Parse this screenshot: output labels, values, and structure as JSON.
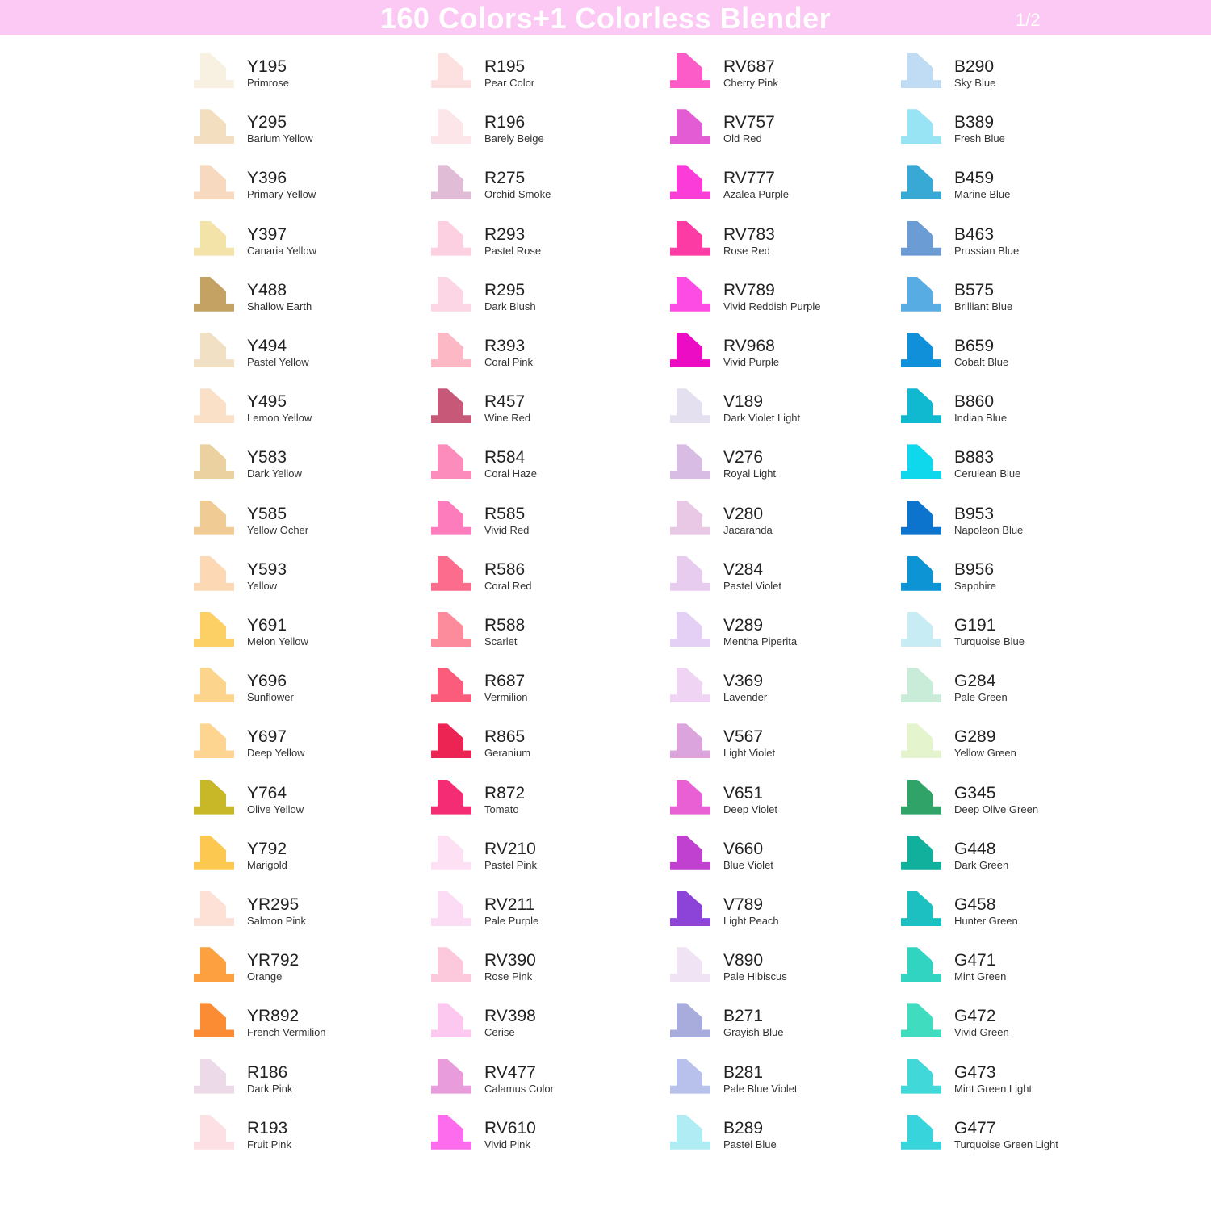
{
  "header": {
    "title": "160 Colors+1 Colorless Blender",
    "page": "1/2",
    "background": "#fcc8f4"
  },
  "columns": [
    {
      "items": [
        {
          "code": "Y195",
          "name": "Primrose",
          "color": "#f8f0e0"
        },
        {
          "code": "Y295",
          "name": "Barium Yellow",
          "color": "#f3dfc0"
        },
        {
          "code": "Y396",
          "name": "Primary Yellow",
          "color": "#f6d9bf"
        },
        {
          "code": "Y397",
          "name": "Canaria Yellow",
          "color": "#f3e3a8"
        },
        {
          "code": "Y488",
          "name": "Shallow Earth",
          "color": "#c4a264"
        },
        {
          "code": "Y494",
          "name": "Pastel Yellow",
          "color": "#f1e0c4"
        },
        {
          "code": "Y495",
          "name": "Lemon Yellow",
          "color": "#fbe0c8"
        },
        {
          "code": "Y583",
          "name": "Dark Yellow",
          "color": "#ecd1a0"
        },
        {
          "code": "Y585",
          "name": "Yellow Ocher",
          "color": "#f0cc94"
        },
        {
          "code": "Y593",
          "name": "Yellow",
          "color": "#fcd8b4"
        },
        {
          "code": "Y691",
          "name": "Melon Yellow",
          "color": "#fcd064"
        },
        {
          "code": "Y696",
          "name": "Sunflower",
          "color": "#fcd48c"
        },
        {
          "code": "Y697",
          "name": "Deep Yellow",
          "color": "#fdd590"
        },
        {
          "code": "Y764",
          "name": "Olive Yellow",
          "color": "#c8b828"
        },
        {
          "code": "Y792",
          "name": "Marigold",
          "color": "#fcc850"
        },
        {
          "code": "YR295",
          "name": "Salmon Pink",
          "color": "#fde0d6"
        },
        {
          "code": "YR792",
          "name": "Orange",
          "color": "#fca040"
        },
        {
          "code": "YR892",
          "name": "French Vermilion",
          "color": "#fc8c34"
        },
        {
          "code": "R186",
          "name": "Dark Pink",
          "color": "#ecdae8"
        },
        {
          "code": "R193",
          "name": "Fruit Pink",
          "color": "#fde0e4"
        }
      ]
    },
    {
      "items": [
        {
          "code": "R195",
          "name": "Pear Color",
          "color": "#fde0e0"
        },
        {
          "code": "R196",
          "name": "Barely Beige",
          "color": "#fde6ea"
        },
        {
          "code": "R275",
          "name": "Orchid Smoke",
          "color": "#e0bcd6"
        },
        {
          "code": "R293",
          "name": "Pastel Rose",
          "color": "#fcd0e0"
        },
        {
          "code": "R295",
          "name": "Dark Blush",
          "color": "#fcd6e4"
        },
        {
          "code": "R393",
          "name": "Coral Pink",
          "color": "#fcb8c4"
        },
        {
          "code": "R457",
          "name": "Wine Red",
          "color": "#c85878"
        },
        {
          "code": "R584",
          "name": "Coral Haze",
          "color": "#fc8cbc"
        },
        {
          "code": "R585",
          "name": "Vivid Red",
          "color": "#fc7cbc"
        },
        {
          "code": "R586",
          "name": "Coral Red",
          "color": "#fc6c8c"
        },
        {
          "code": "R588",
          "name": "Scarlet",
          "color": "#fc8c9c"
        },
        {
          "code": "R687",
          "name": "Vermilion",
          "color": "#fc5c7c"
        },
        {
          "code": "R865",
          "name": "Geranium",
          "color": "#ec2454"
        },
        {
          "code": "R872",
          "name": "Tomato",
          "color": "#f42c74"
        },
        {
          "code": "RV210",
          "name": "Pastel Pink",
          "color": "#fde0f4"
        },
        {
          "code": "RV211",
          "name": "Pale Purple",
          "color": "#fcdcf4"
        },
        {
          "code": "RV390",
          "name": "Rose Pink",
          "color": "#fcc8dc"
        },
        {
          "code": "RV398",
          "name": "Cerise",
          "color": "#fcc8f0"
        },
        {
          "code": "RV477",
          "name": "Calamus Color",
          "color": "#e89cdc"
        },
        {
          "code": "RV610",
          "name": "Vivid Pink",
          "color": "#fc6cec"
        }
      ]
    },
    {
      "items": [
        {
          "code": "RV687",
          "name": "Cherry Pink",
          "color": "#fc5cc8"
        },
        {
          "code": "RV757",
          "name": "Old Red",
          "color": "#e45cd4"
        },
        {
          "code": "RV777",
          "name": "Azalea Purple",
          "color": "#fc3cd8"
        },
        {
          "code": "RV783",
          "name": "Rose Red",
          "color": "#fc3ca4"
        },
        {
          "code": "RV789",
          "name": "Vivid Reddish Purple",
          "color": "#fc4ce4"
        },
        {
          "code": "RV968",
          "name": "Vivid Purple",
          "color": "#ec0cc4"
        },
        {
          "code": "V189",
          "name": "Dark Violet Light",
          "color": "#e4e0f0"
        },
        {
          "code": "V276",
          "name": "Royal Light",
          "color": "#d8bce4"
        },
        {
          "code": "V280",
          "name": "Jacaranda",
          "color": "#e8c8e4"
        },
        {
          "code": "V284",
          "name": "Pastel Violet",
          "color": "#e8ccf0"
        },
        {
          "code": "V289",
          "name": "Mentha Piperita",
          "color": "#e4d0f4"
        },
        {
          "code": "V369",
          "name": "Lavender",
          "color": "#f0d4f4"
        },
        {
          "code": "V567",
          "name": "Light Violet",
          "color": "#dca4dc"
        },
        {
          "code": "V651",
          "name": "Deep Violet",
          "color": "#e860d4"
        },
        {
          "code": "V660",
          "name": "Blue Violet",
          "color": "#c040d0"
        },
        {
          "code": "V789",
          "name": "Light Peach",
          "color": "#8c44d8"
        },
        {
          "code": "V890",
          "name": "Pale Hibiscus",
          "color": "#f0e4f4"
        },
        {
          "code": "B271",
          "name": "Grayish Blue",
          "color": "#a8acdc"
        },
        {
          "code": "B281",
          "name": "Pale Blue Violet",
          "color": "#b8c0ec"
        },
        {
          "code": "B289",
          "name": "Pastel Blue",
          "color": "#b0ecf4"
        }
      ]
    },
    {
      "items": [
        {
          "code": "B290",
          "name": "Sky Blue",
          "color": "#c0dcf4"
        },
        {
          "code": "B389",
          "name": "Fresh Blue",
          "color": "#98e4f4"
        },
        {
          "code": "B459",
          "name": "Marine Blue",
          "color": "#38a8d4"
        },
        {
          "code": "B463",
          "name": "Prussian Blue",
          "color": "#6c9cd4"
        },
        {
          "code": "B575",
          "name": "Brilliant Blue",
          "color": "#58ace4"
        },
        {
          "code": "B659",
          "name": "Cobalt Blue",
          "color": "#1090d8"
        },
        {
          "code": "B860",
          "name": "Indian Blue",
          "color": "#10b8d0"
        },
        {
          "code": "B883",
          "name": "Cerulean Blue",
          "color": "#10d8ec"
        },
        {
          "code": "B953",
          "name": "Napoleon Blue",
          "color": "#0c74cc"
        },
        {
          "code": "B956",
          "name": "Sapphire",
          "color": "#0c94d4"
        },
        {
          "code": "G191",
          "name": "Turquoise Blue",
          "color": "#c8ecf4"
        },
        {
          "code": "G284",
          "name": "Pale Green",
          "color": "#c8ecd8"
        },
        {
          "code": "G289",
          "name": "Yellow Green",
          "color": "#e4f4cc"
        },
        {
          "code": "G345",
          "name": "Deep Olive Green",
          "color": "#30a468"
        },
        {
          "code": "G448",
          "name": "Dark Green",
          "color": "#10b09c"
        },
        {
          "code": "G458",
          "name": "Hunter Green",
          "color": "#1cc0c0"
        },
        {
          "code": "G471",
          "name": "Mint Green",
          "color": "#30d4c0"
        },
        {
          "code": "G472",
          "name": "Vivid Green",
          "color": "#40dcc0"
        },
        {
          "code": "G473",
          "name": "Mint Green Light",
          "color": "#40d8d8"
        },
        {
          "code": "G477",
          "name": "Turquoise Green Light",
          "color": "#38d4dc"
        }
      ]
    }
  ]
}
